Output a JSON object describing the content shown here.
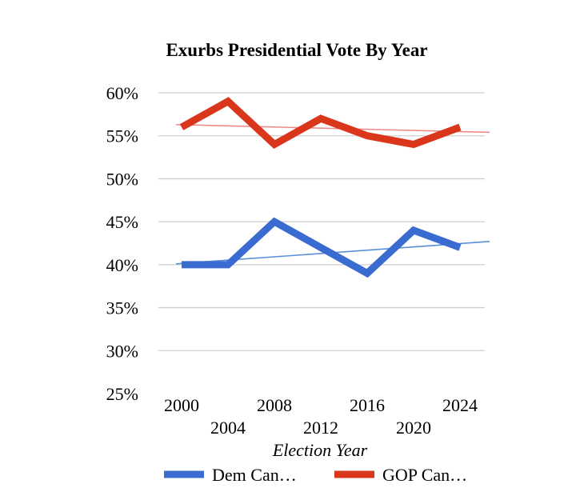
{
  "chart_data": {
    "type": "line",
    "title": "Exurbs Presidential Vote By Year",
    "xlabel": "Election Year",
    "ylabel": "",
    "ylim": [
      25,
      60
    ],
    "yticks": [
      25,
      30,
      35,
      40,
      45,
      50,
      55,
      60
    ],
    "ytick_labels": [
      "25%",
      "30%",
      "35%",
      "40%",
      "45%",
      "50%",
      "55%",
      "60%"
    ],
    "x": [
      2000,
      2004,
      2008,
      2012,
      2016,
      2020,
      2024
    ],
    "xtick_labels": [
      "2000",
      "2004",
      "2008",
      "2012",
      "2016",
      "2020",
      "2024"
    ],
    "grid": true,
    "legend_position": "bottom",
    "series": [
      {
        "name": "Dem Can…",
        "color": "#3a6bd0",
        "values": [
          40,
          40,
          45,
          42,
          39,
          44,
          42
        ],
        "trendline": {
          "color": "#5b8fdb",
          "start": 40.1,
          "end": 42.7
        }
      },
      {
        "name": "GOP Can…",
        "color": "#d9361b",
        "values": [
          56,
          59,
          54,
          57,
          55,
          54,
          56
        ],
        "trendline": {
          "color": "#ef8a8a",
          "start": 56.3,
          "end": 55.4
        }
      }
    ]
  }
}
